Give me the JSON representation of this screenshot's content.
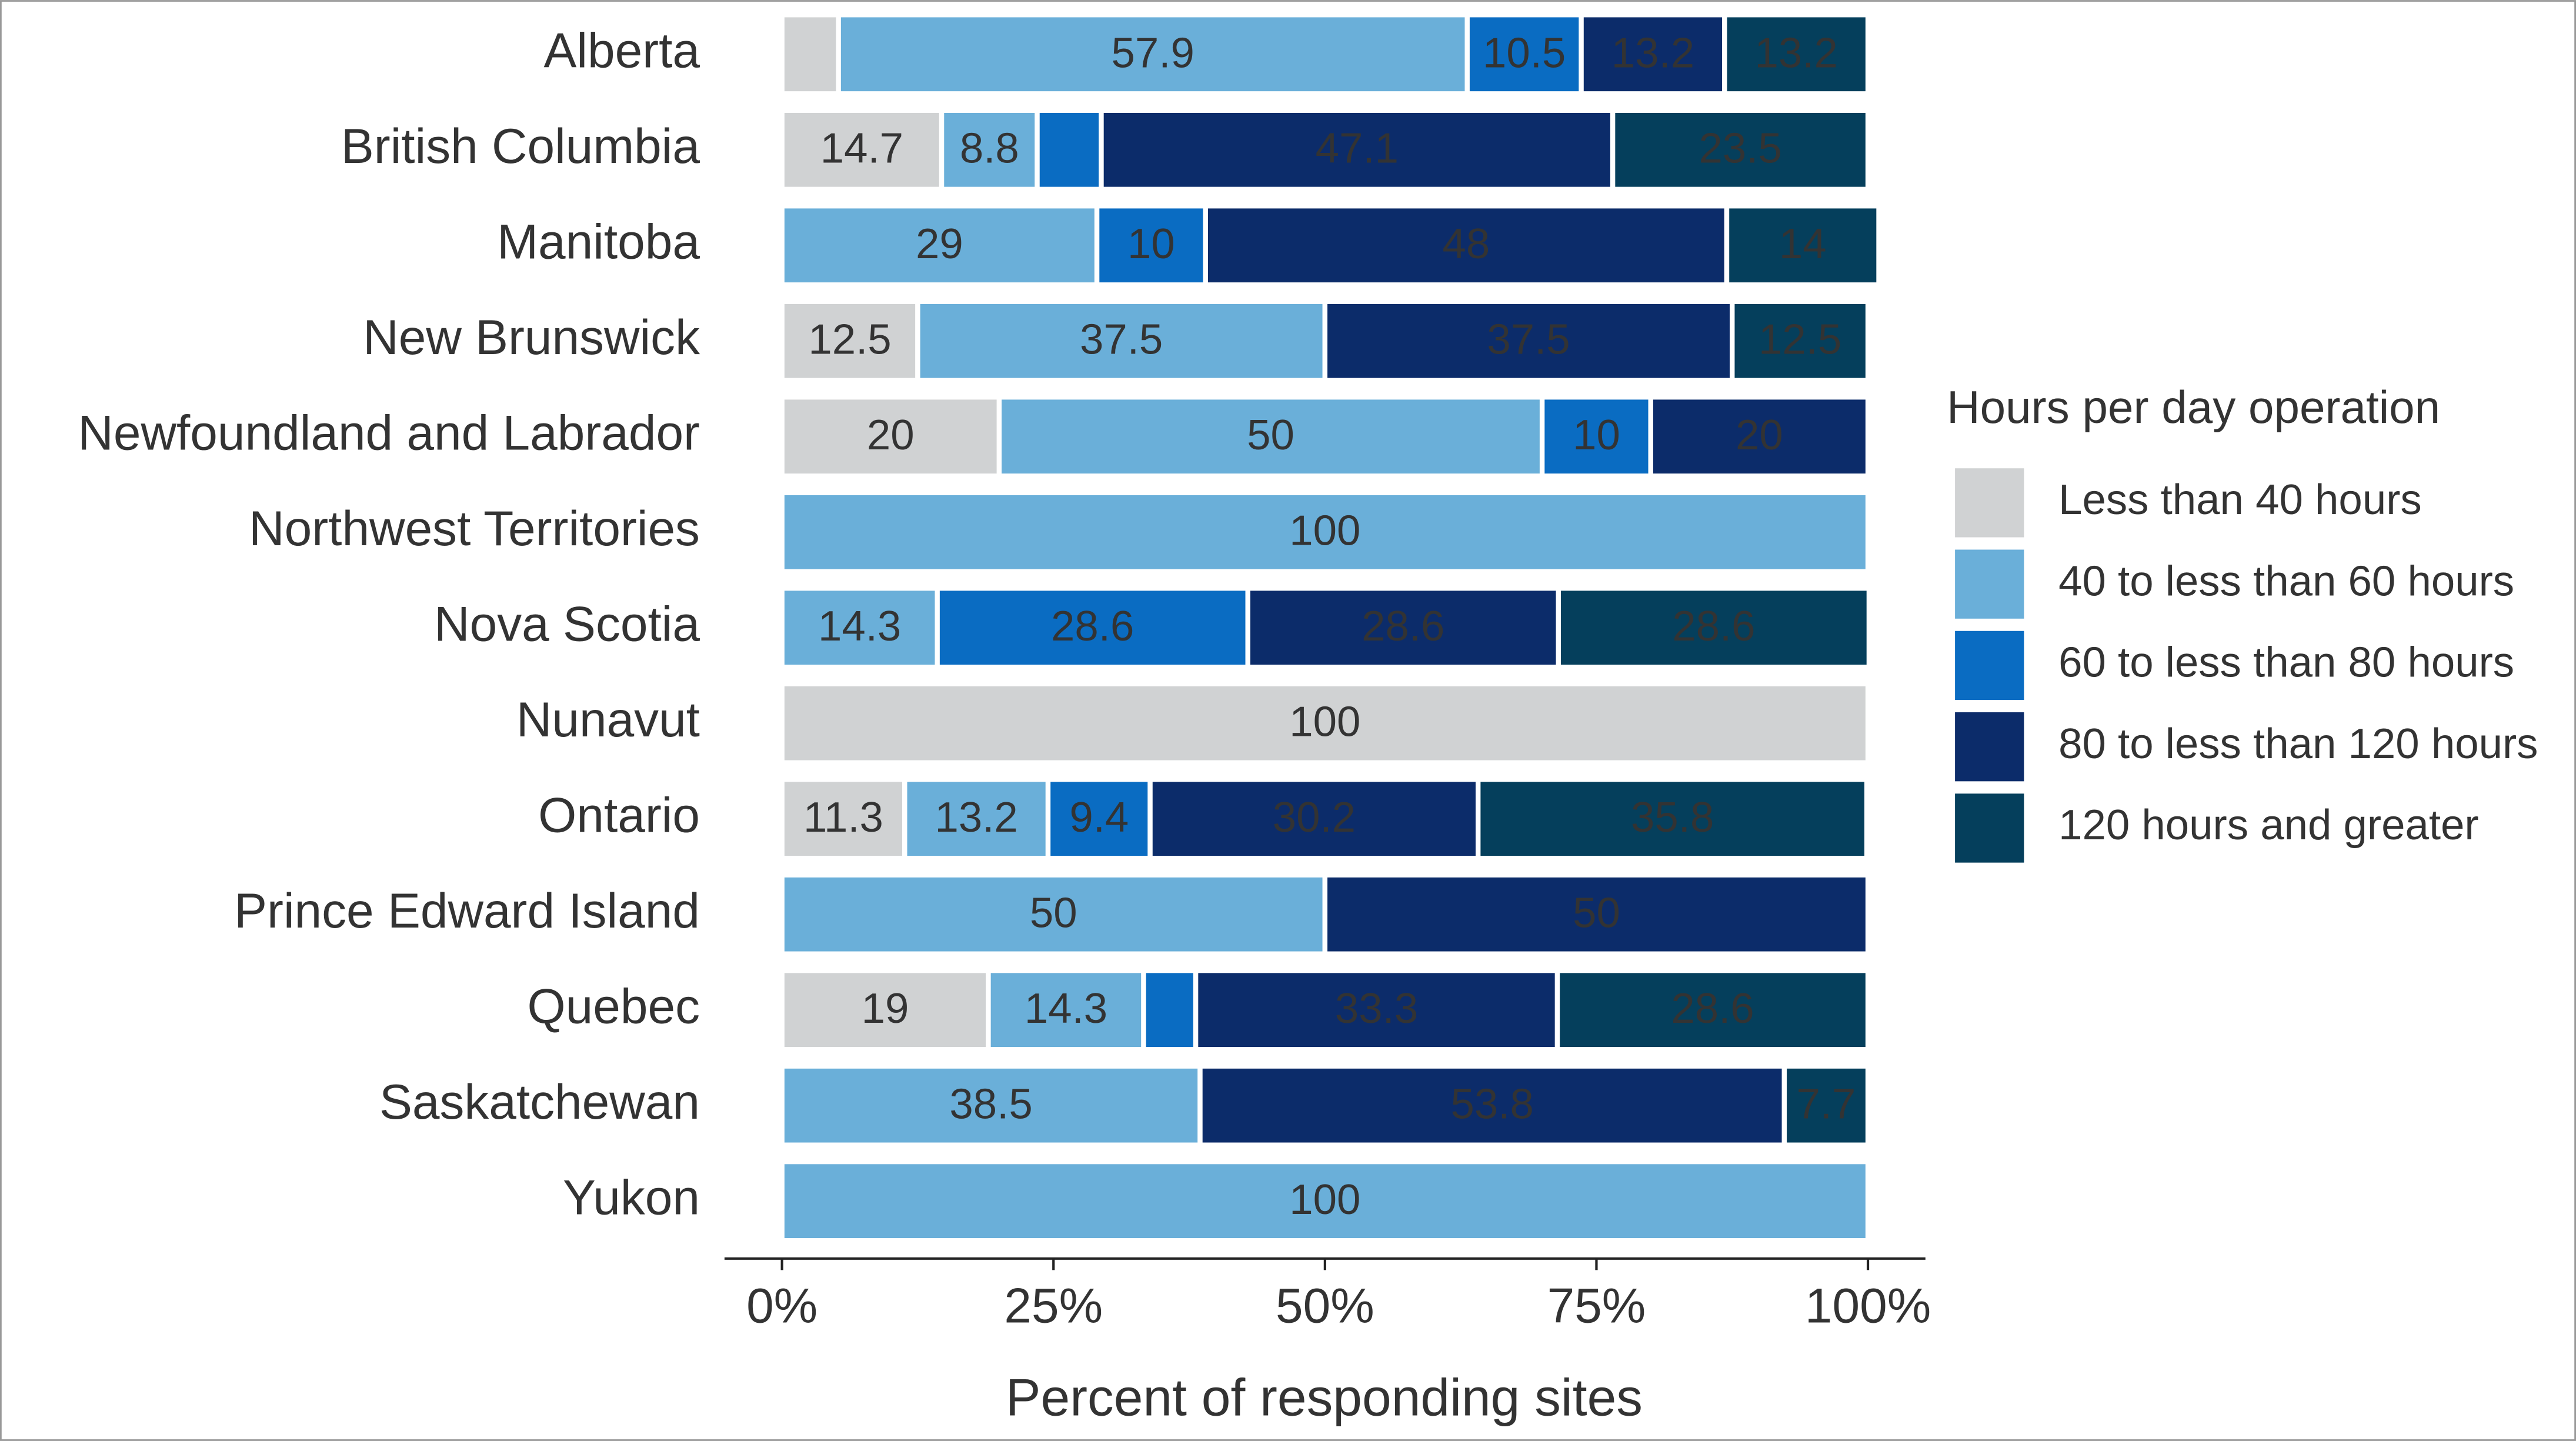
{
  "chart_data": {
    "type": "stacked-bar-horizontal",
    "categories": [
      "Alberta",
      "British Columbia",
      "Manitoba",
      "New Brunswick",
      "Newfoundland and Labrador",
      "Northwest Territories",
      "Nova Scotia",
      "Nunavut",
      "Ontario",
      "Prince Edward Island",
      "Quebec",
      "Saskatchewan",
      "Yukon"
    ],
    "series": [
      {
        "name": "Less than 40 hours",
        "color": "#d0d2d3",
        "values": [
          5.2,
          14.7,
          null,
          12.5,
          20,
          null,
          null,
          100,
          11.3,
          null,
          19,
          null,
          null
        ]
      },
      {
        "name": "40 to less than 60 hours",
        "color": "#6aafd9",
        "values": [
          57.9,
          8.8,
          29,
          37.5,
          50,
          100,
          14.3,
          null,
          13.2,
          50,
          14.3,
          38.5,
          100
        ]
      },
      {
        "name": "60 to less than 80 hours",
        "color": "#0a6cc2",
        "values": [
          10.5,
          5.9,
          10,
          null,
          10,
          null,
          28.6,
          null,
          9.4,
          null,
          4.8,
          null,
          null
        ]
      },
      {
        "name": "80 to less than 120 hours",
        "color": "#0c2c6a",
        "values": [
          13.2,
          47.1,
          48,
          37.5,
          20,
          null,
          28.6,
          null,
          30.2,
          50,
          33.3,
          53.8,
          null
        ]
      },
      {
        "name": "120 hours and greater",
        "color": "#053f5c",
        "values": [
          13.2,
          23.5,
          14,
          12.5,
          null,
          null,
          28.6,
          null,
          35.8,
          null,
          28.6,
          7.7,
          null
        ]
      }
    ],
    "xlabel": "Percent of responding sites",
    "xlim": [
      0,
      100
    ],
    "xticks": [
      {
        "value": 0,
        "label": "0%"
      },
      {
        "value": 25,
        "label": "25%"
      },
      {
        "value": 50,
        "label": "50%"
      },
      {
        "value": 75,
        "label": "75%"
      },
      {
        "value": 100,
        "label": "100%"
      }
    ],
    "legend_title": "Hours per day operation",
    "legend": "right"
  }
}
